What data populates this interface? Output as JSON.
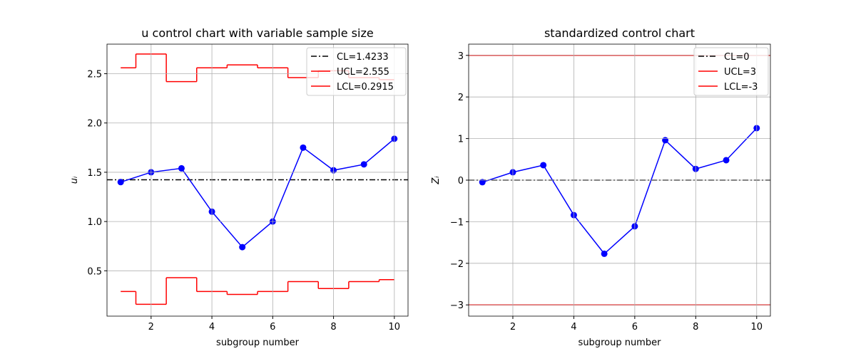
{
  "chart_data": [
    {
      "type": "line",
      "title": "u control chart with variable sample size",
      "xlabel": "subgroup number",
      "ylabel": "uᵢ",
      "x": [
        1,
        2,
        3,
        4,
        5,
        6,
        7,
        8,
        9,
        10
      ],
      "values": [
        1.4,
        1.5,
        1.54,
        1.1,
        0.74,
        1.0,
        1.75,
        1.52,
        1.58,
        1.84
      ],
      "color": "#0000ff",
      "marker": "o",
      "limits": [
        {
          "name": "CL=1.4233",
          "value": 1.4233,
          "color": "#000000",
          "linestyle": "dashdot"
        },
        {
          "name": "UCL=2.555",
          "values": [
            2.56,
            2.7,
            2.42,
            2.56,
            2.59,
            2.56,
            2.46,
            2.53,
            2.46,
            2.44
          ],
          "color": "#ff0000",
          "linestyle": "solid",
          "drawstyle": "steps-mid"
        },
        {
          "name": "LCL=0.2915",
          "values": [
            0.29,
            0.16,
            0.43,
            0.29,
            0.26,
            0.29,
            0.39,
            0.32,
            0.39,
            0.41
          ],
          "color": "#ff0000",
          "linestyle": "solid",
          "drawstyle": "steps-mid"
        }
      ],
      "xlim": [
        0.55,
        10.45
      ],
      "xticks": [
        2,
        4,
        6,
        8,
        10
      ],
      "ylim": [
        0.04,
        2.8
      ],
      "yticks": [
        0.5,
        {
          "value": 1,
          "label": "1.0"
        },
        1.5,
        {
          "value": 2,
          "label": "2.0"
        },
        2.5
      ],
      "grid": true,
      "legend": "upper right"
    },
    {
      "type": "line",
      "title": "standardized control chart",
      "xlabel": "subgroup number",
      "ylabel": "Zᵢ",
      "x": [
        1,
        2,
        3,
        4,
        5,
        6,
        7,
        8,
        9,
        10
      ],
      "values": [
        -0.05,
        0.19,
        0.36,
        -0.84,
        -1.77,
        -1.11,
        0.96,
        0.27,
        0.48,
        1.25
      ],
      "color": "#0000ff",
      "marker": "o",
      "limits": [
        {
          "name": "CL=0",
          "value": 0,
          "color": "#000000",
          "linestyle": "dashdot"
        },
        {
          "name": "UCL=3",
          "value": 3,
          "color": "#ff0000",
          "linestyle": "solid"
        },
        {
          "name": "LCL=-3",
          "value": -3,
          "color": "#ff0000",
          "linestyle": "solid"
        }
      ],
      "xlim": [
        0.55,
        10.45
      ],
      "xticks": [
        2,
        4,
        6,
        8,
        10
      ],
      "ylim": [
        -3.27,
        3.27
      ],
      "yticks": [
        {
          "value": -3,
          "label": "−3"
        },
        {
          "value": -2,
          "label": "−2"
        },
        {
          "value": -1,
          "label": "−1"
        },
        0,
        1,
        2,
        3
      ],
      "grid": true,
      "legend": "upper right"
    }
  ]
}
